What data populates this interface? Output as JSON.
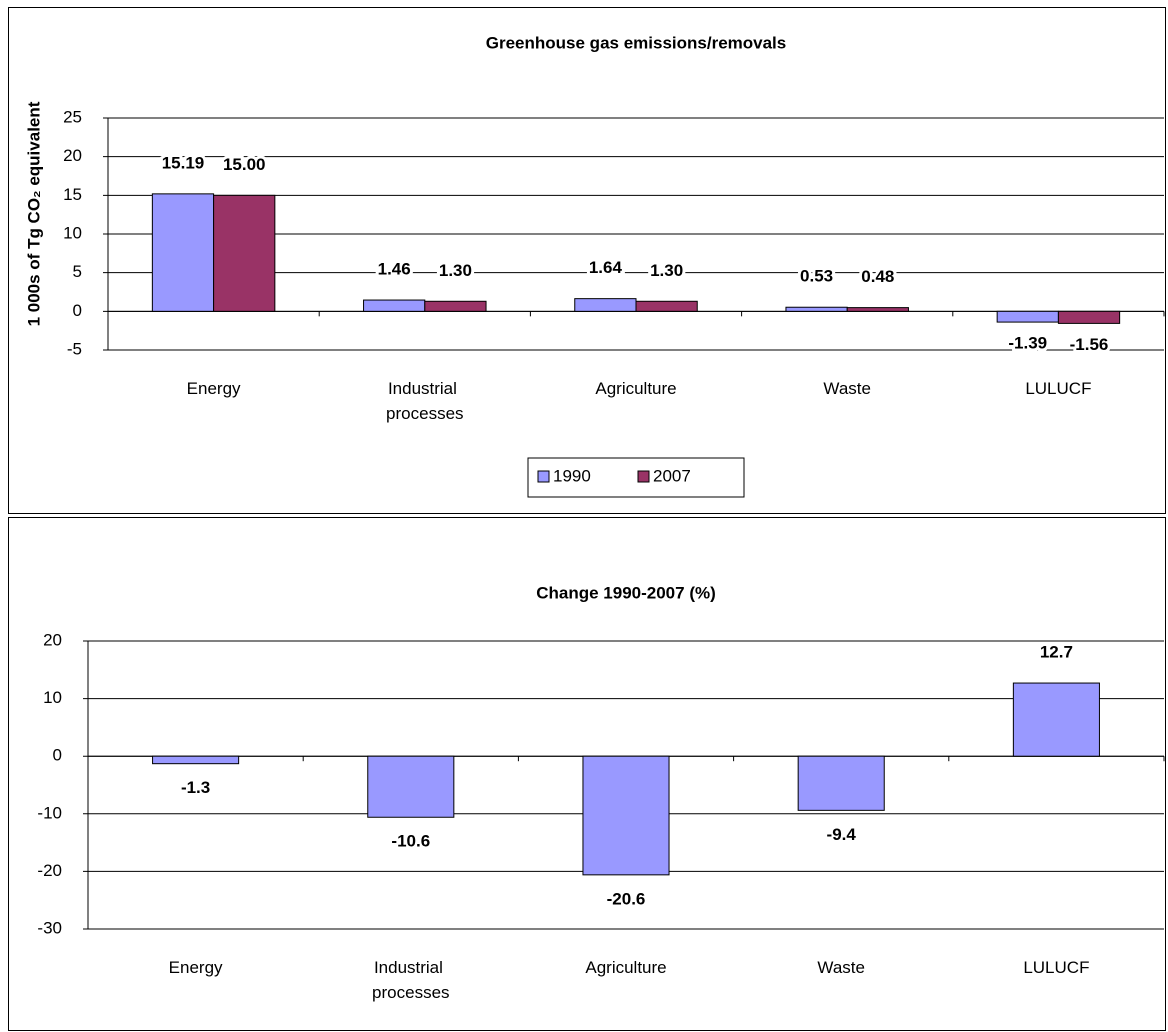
{
  "chart_data": [
    {
      "type": "bar",
      "title": "Greenhouse gas emissions/removals",
      "y_label": "1 000s of Tg CO₂ equivalent",
      "categories": [
        "Energy",
        "Industrial processes",
        "Agriculture",
        "Waste",
        "LULUCF"
      ],
      "series": [
        {
          "name": "1990",
          "color": "#9999ff",
          "values": [
            15.19,
            1.46,
            1.64,
            0.53,
            -1.39
          ],
          "value_labels": [
            "15.19",
            "1.46",
            "1.64",
            "0.53",
            "-1.39"
          ]
        },
        {
          "name": "2007",
          "color": "#993366",
          "values": [
            15,
            1.3,
            1.3,
            0.48,
            -1.56
          ],
          "value_labels": [
            "15.00",
            "1.30",
            "1.30",
            "0.48",
            "-1.56"
          ]
        }
      ],
      "ylim": [
        -5,
        25
      ],
      "yticks": [
        -5,
        0,
        5,
        10,
        15,
        20,
        25
      ],
      "grid": true,
      "legend": "bottom"
    },
    {
      "type": "bar",
      "title": "Change 1990-2007 (%)",
      "categories": [
        "Energy",
        "Industrial processes",
        "Agriculture",
        "Waste",
        "LULUCF"
      ],
      "values": [
        -1.3,
        -10.6,
        -20.6,
        -9.4,
        12.7
      ],
      "color": "#9999ff",
      "ylim": [
        -30,
        20
      ],
      "yticks": [
        -30,
        -20,
        -10,
        0,
        10,
        20
      ],
      "grid": true
    }
  ]
}
